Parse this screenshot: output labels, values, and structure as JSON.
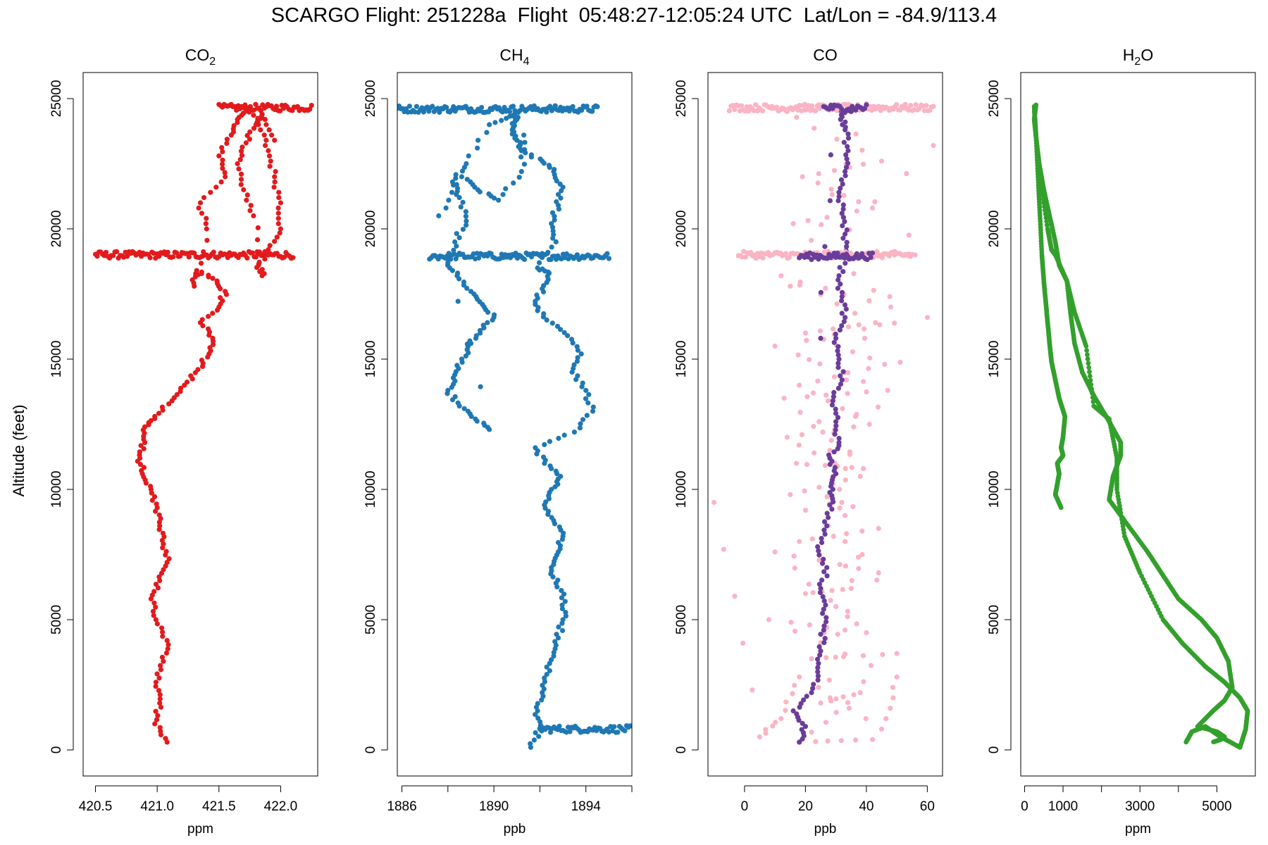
{
  "title": "SCARGO Flight: 251228a  Flight  05:48:27-12:05:24 UTC  Lat/Lon = -84.9/113.4",
  "ylabel": "Altitude (feet)",
  "chart_data": [
    {
      "type": "scatter",
      "title": "CO",
      "title_sub": "2",
      "xlabel": "ppm",
      "xlim": [
        420.4,
        422.3
      ],
      "ylim": [
        -1000,
        26000
      ],
      "xticks": [
        420.5,
        421.0,
        421.5,
        422.0
      ],
      "xtick_labels": [
        "420.5",
        "421.0",
        "421.5",
        "422.0"
      ],
      "yticks": [
        0,
        5000,
        10000,
        15000,
        20000,
        25000
      ],
      "ytick_labels": [
        "0",
        "5000",
        "10000",
        "15000",
        "20000",
        "25000"
      ],
      "series": [
        {
          "color": "#e31a1c",
          "x": [
            421.08,
            420.98,
            421.02,
            420.99,
            421.05,
            421.08,
            420.99,
            420.95,
            421.02,
            421.08,
            421.05,
            421.02,
            421.0,
            420.95,
            420.88,
            420.86,
            420.9,
            420.9,
            420.98,
            421.12,
            421.22,
            421.33,
            421.42,
            421.45,
            421.35,
            421.5,
            421.55,
            421.45,
            421.32,
            421.3,
            421.4,
            421.35,
            421.55,
            421.5,
            421.6,
            421.65,
            421.75,
            421.82,
            421.9,
            421.95,
            422.0,
            422.0,
            421.9,
            421.82,
            421.85,
            421.78,
            421.7,
            421.65,
            421.72,
            421.8,
            421.85,
            421.95
          ],
          "y": [
            300,
            1000,
            1800,
            2600,
            3400,
            4200,
            5000,
            5800,
            6500,
            7200,
            7900,
            8600,
            9300,
            10000,
            10600,
            11200,
            11800,
            12400,
            12800,
            13400,
            14000,
            14600,
            15200,
            15800,
            16400,
            17000,
            17600,
            18100,
            18400,
            17800,
            20000,
            21000,
            22000,
            22800,
            23600,
            24200,
            24600,
            24000,
            23000,
            22000,
            21000,
            20000,
            19200,
            18600,
            18200,
            20500,
            21500,
            22500,
            23300,
            24000,
            24400,
            23400
          ]
        }
      ],
      "bands": [
        {
          "y": 19000,
          "x": [
            420.5,
            422.1
          ],
          "color": "#e31a1c"
        },
        {
          "y": 24650,
          "x": [
            421.5,
            422.25
          ],
          "color": "#e31a1c"
        }
      ]
    },
    {
      "type": "scatter",
      "title": "CH",
      "title_sub": "4",
      "xlabel": "ppb",
      "xlim": [
        1885.8,
        1896.0
      ],
      "ylim": [
        -1000,
        26000
      ],
      "xticks": [
        1886,
        1888,
        1890,
        1892,
        1894,
        1896
      ],
      "xtick_labels": [
        "1886",
        "",
        "1890",
        "",
        "1894",
        ""
      ],
      "yticks": [
        0,
        5000,
        10000,
        15000,
        20000,
        25000
      ],
      "ytick_labels": [
        "0",
        "5000",
        "10000",
        "15000",
        "20000",
        "25000"
      ],
      "series": [
        {
          "color": "#1f78b4",
          "x": [
            1891.6,
            1892.0,
            1891.9,
            1892.1,
            1892.3,
            1892.6,
            1892.8,
            1893.0,
            1893.1,
            1892.7,
            1892.5,
            1892.8,
            1893.0,
            1892.6,
            1892.2,
            1892.5,
            1892.9,
            1892.2,
            1891.8,
            1893.5,
            1894.3,
            1894.0,
            1893.4,
            1893.8,
            1893.2,
            1892.3,
            1891.8,
            1892.1,
            1892.4,
            1891.9,
            1892.7,
            1892.5,
            1892.8,
            1893.0,
            1892.6,
            1892.1,
            1891.2,
            1891.0,
            1890.8,
            1891.0,
            1890.9,
            1889.8,
            1888.8,
            1888.2,
            1888.5,
            1888.8,
            1888.3,
            1888.0,
            1888.4,
            1889.0,
            1889.5,
            1890.0,
            1889.4,
            1889.0,
            1888.6,
            1888.3,
            1888.0,
            1888.5,
            1889.2,
            1889.8,
            1887.6,
            1888.6,
            1889.3,
            1890.2,
            1891.2,
            1891.3
          ],
          "y": [
            100,
            800,
            1500,
            2200,
            2900,
            3600,
            4300,
            5000,
            5700,
            6400,
            7000,
            7600,
            8200,
            8800,
            9400,
            10000,
            10500,
            11000,
            11600,
            12200,
            13000,
            13800,
            14500,
            15200,
            15900,
            16500,
            17100,
            17700,
            18300,
            18500,
            19500,
            20200,
            20900,
            21600,
            22200,
            22600,
            23000,
            23400,
            23800,
            24200,
            24400,
            24000,
            22500,
            21800,
            21200,
            20300,
            19500,
            18700,
            18200,
            17600,
            17100,
            16600,
            16100,
            15600,
            15000,
            14400,
            13800,
            13200,
            12700,
            12300,
            20500,
            22000,
            21500,
            21100,
            22200,
            23600
          ]
        }
      ],
      "bands": [
        {
          "y": 18950,
          "x": [
            1887.2,
            1895.0
          ],
          "color": "#1f78b4"
        },
        {
          "y": 24600,
          "x": [
            1885.8,
            1894.5
          ],
          "color": "#1f78b4"
        },
        {
          "y": 800,
          "x": [
            1892.0,
            1896.0
          ],
          "color": "#1f78b4"
        }
      ]
    },
    {
      "type": "scatter",
      "title": "CO",
      "title_sub": "",
      "xlabel": "ppb",
      "xlim": [
        -12,
        65
      ],
      "ylim": [
        -1000,
        26000
      ],
      "xticks": [
        0,
        20,
        40,
        60
      ],
      "xtick_labels": [
        "0",
        "20",
        "40",
        "60"
      ],
      "yticks": [
        0,
        5000,
        10000,
        15000,
        20000,
        25000
      ],
      "ytick_labels": [
        "0",
        "5000",
        "10000",
        "15000",
        "20000",
        "25000"
      ],
      "series": [
        {
          "color": "#fbb4c4",
          "x": [
            -10,
            5,
            12,
            18,
            45,
            50,
            8,
            40,
            10,
            44,
            15,
            38,
            14,
            41,
            18,
            46,
            20,
            43,
            12,
            48,
            16,
            42,
            19,
            45,
            9,
            52,
            14,
            40,
            22,
            56,
            17,
            39,
            13,
            47,
            10,
            60,
            18,
            44,
            22,
            50,
            15,
            62,
            20,
            35,
            25,
            38,
            18,
            42,
            28,
            33
          ],
          "y": [
            9500,
            500,
            1200,
            2800,
            800,
            2800,
            5000,
            4500,
            7600,
            6800,
            9800,
            10500,
            12000,
            12500,
            14000,
            14800,
            16000,
            16400,
            18200,
            17000,
            20200,
            20800,
            22000,
            22600,
            24700,
            24700,
            24500,
            24800,
            19000,
            19000,
            11000,
            10800,
            13500,
            13800,
            15500,
            16600,
            8000,
            8500,
            3500,
            3700,
            17800,
            23200,
            6000,
            6200,
            1800,
            2200,
            300,
            400,
            11500,
            9000
          ]
        },
        {
          "color": "#6a3d9a",
          "x": [
            18,
            20,
            16,
            22,
            24,
            25,
            26,
            26,
            25,
            27,
            24,
            27,
            28,
            29,
            30,
            28,
            31,
            30,
            29,
            32,
            31,
            30,
            33,
            32,
            31,
            34,
            33,
            32,
            31,
            33,
            34,
            33,
            32,
            34,
            35,
            30,
            25
          ],
          "y": [
            300,
            900,
            1500,
            2200,
            3000,
            3800,
            4600,
            5400,
            6200,
            7000,
            7800,
            8600,
            9400,
            10000,
            10600,
            11200,
            11800,
            12600,
            13400,
            14200,
            15000,
            15800,
            16600,
            17400,
            18200,
            19000,
            19800,
            20600,
            21400,
            22200,
            23000,
            23800,
            24300,
            24700,
            24500,
            24600,
            15800
          ]
        }
      ],
      "bands": [
        {
          "y": 24650,
          "x": [
            -5,
            62
          ],
          "color": "#fbb4c4"
        },
        {
          "y": 19000,
          "x": [
            -2,
            55
          ],
          "color": "#fbb4c4"
        },
        {
          "y": 24650,
          "x": [
            26,
            40
          ],
          "color": "#6a3d9a"
        },
        {
          "y": 18950,
          "x": [
            18,
            42
          ],
          "color": "#6a3d9a"
        }
      ]
    },
    {
      "type": "scatter",
      "title": "H",
      "title_sub": "2",
      "title_tail": "O",
      "xlabel": "ppm",
      "xlim": [
        -100,
        6000
      ],
      "ylim": [
        -1000,
        26000
      ],
      "xticks": [
        0,
        1000,
        2000,
        3000,
        4000,
        5000
      ],
      "xtick_labels": [
        "0",
        "1000",
        "",
        "3000",
        "",
        "5000"
      ],
      "yticks": [
        0,
        5000,
        10000,
        15000,
        20000,
        25000
      ],
      "ytick_labels": [
        "0",
        "5000",
        "10000",
        "15000",
        "20000",
        "25000"
      ],
      "series": [
        {
          "color": "#33a02c",
          "mode": "line",
          "name_hidden": true,
          "x": [
            4200,
            4350,
            4700,
            5100,
            5600,
            5750,
            5800,
            5600,
            5200,
            4700,
            4100,
            3600,
            3000,
            2600,
            2400,
            2400,
            2200,
            1800,
            1600,
            1300,
            1100,
            900,
            800,
            650,
            500,
            380,
            300,
            250,
            300
          ],
          "y": [
            300,
            700,
            900,
            500,
            100,
            800,
            1500,
            2000,
            2600,
            3200,
            4100,
            5000,
            6800,
            8200,
            10000,
            11200,
            12700,
            13200,
            15500,
            16800,
            18000,
            18600,
            19500,
            20500,
            21500,
            22500,
            23500,
            24200,
            24800
          ]
        },
        {
          "color": "#33a02c",
          "mode": "line",
          "x": [
            250,
            300,
            400,
            600,
            700,
            800,
            1100,
            1200,
            1300,
            1500,
            1800,
            2200,
            2500,
            2500,
            2300,
            2200,
            2600,
            3200,
            3600,
            4000,
            4600,
            5000,
            5300,
            5400,
            5200,
            4900,
            4500,
            5000,
            5200,
            5100,
            4900
          ],
          "y": [
            24700,
            23500,
            22000,
            20000,
            19200,
            19000,
            18000,
            16700,
            15600,
            14500,
            13600,
            12600,
            11800,
            11300,
            10500,
            9600,
            8800,
            7600,
            6700,
            5800,
            5000,
            4300,
            3400,
            2400,
            1900,
            1500,
            900,
            700,
            500,
            400,
            300
          ]
        },
        {
          "color": "#33a02c",
          "mode": "line",
          "x": [
            950,
            800,
            850,
            900,
            850,
            1000,
            950,
            1000,
            1050,
            900,
            800,
            700,
            650,
            600,
            550,
            500,
            450,
            400,
            350,
            300,
            250
          ],
          "y": [
            9300,
            9800,
            10200,
            10600,
            11000,
            11300,
            11600,
            12000,
            12800,
            13500,
            14200,
            14900,
            15600,
            16400,
            17200,
            18000,
            19000,
            20500,
            22000,
            23500,
            24600
          ]
        }
      ],
      "bands": []
    }
  ]
}
